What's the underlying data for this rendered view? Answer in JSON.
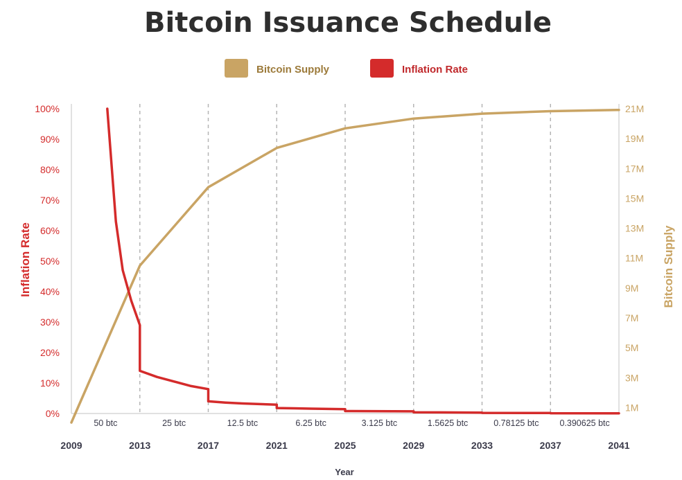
{
  "chart_data": {
    "type": "line",
    "title": "Bitcoin Issuance Schedule",
    "xlabel": "Year",
    "ylabel_left": "Inflation Rate",
    "ylabel_right": "Bitcoin Supply",
    "xlim": [
      2009,
      2041
    ],
    "ylim_left": [
      0,
      100
    ],
    "ylim_right": [
      0,
      21
    ],
    "x_ticks": [
      "2009",
      "2013",
      "2017",
      "2021",
      "2025",
      "2029",
      "2033",
      "2037",
      "2041"
    ],
    "y_left_ticks": [
      "0%",
      "10%",
      "20%",
      "30%",
      "40%",
      "50%",
      "60%",
      "70%",
      "80%",
      "90%",
      "100%"
    ],
    "y_right_ticks": [
      "1M",
      "3M",
      "5M",
      "7M",
      "9M",
      "11M",
      "13M",
      "15M",
      "17M",
      "19M",
      "21M"
    ],
    "grid": "vertical dashed at halving years",
    "legend_position": "top-center",
    "halving_eras": [
      {
        "label": "50 btc",
        "start": 2009,
        "end": 2013
      },
      {
        "label": "25 btc",
        "start": 2013,
        "end": 2017
      },
      {
        "label": "12.5 btc",
        "start": 2017,
        "end": 2021
      },
      {
        "label": "6.25 btc",
        "start": 2021,
        "end": 2025
      },
      {
        "label": "3.125 btc",
        "start": 2025,
        "end": 2029
      },
      {
        "label": "1.5625 btc",
        "start": 2029,
        "end": 2033
      },
      {
        "label": "0.78125 btc",
        "start": 2033,
        "end": 2037
      },
      {
        "label": "0.390625 btc",
        "start": 2037,
        "end": 2041
      }
    ],
    "series": [
      {
        "name": "Bitcoin Supply",
        "axis": "right",
        "color": "#c9a464",
        "x": [
          2009,
          2013,
          2017,
          2021,
          2025,
          2029,
          2033,
          2037,
          2041
        ],
        "y": [
          0,
          10.5,
          15.75,
          18.375,
          19.6875,
          20.34,
          20.67,
          20.84,
          20.92
        ]
      },
      {
        "name": "Inflation Rate",
        "axis": "left",
        "color": "#d42b2b",
        "x": [
          2011.1,
          2011.6,
          2012.0,
          2012.5,
          2013.0,
          2013.0,
          2014.0,
          2015.0,
          2016.0,
          2017.0,
          2017.0,
          2018.0,
          2019.0,
          2020.0,
          2021.0,
          2021.0,
          2022.0,
          2023.0,
          2024.0,
          2025.0,
          2025.0,
          2029.0,
          2029.0,
          2033.0,
          2033.0,
          2037.0,
          2037.0,
          2041.0
        ],
        "y": [
          100,
          63,
          47,
          37,
          29,
          14,
          12,
          10.5,
          9,
          8,
          4,
          3.6,
          3.3,
          3.1,
          2.9,
          1.8,
          1.7,
          1.6,
          1.5,
          1.4,
          0.8,
          0.7,
          0.4,
          0.3,
          0.2,
          0.15,
          0.1,
          0.05
        ]
      }
    ]
  }
}
